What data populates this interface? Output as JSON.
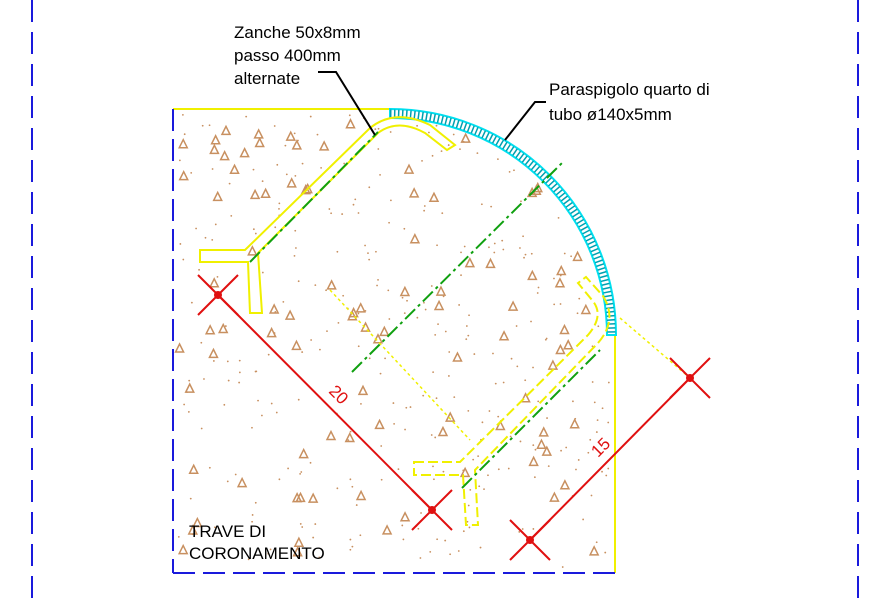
{
  "annotations": {
    "zanche": [
      "Zanche 50x8mm",
      "passo 400mm",
      "alternate"
    ],
    "paraspigolo": [
      "Paraspigolo quarto di",
      "tubo ø140x5mm"
    ],
    "trave": [
      "TRAVE DI",
      "CORONAMENTO"
    ]
  },
  "dimensions": [
    20,
    15
  ]
}
